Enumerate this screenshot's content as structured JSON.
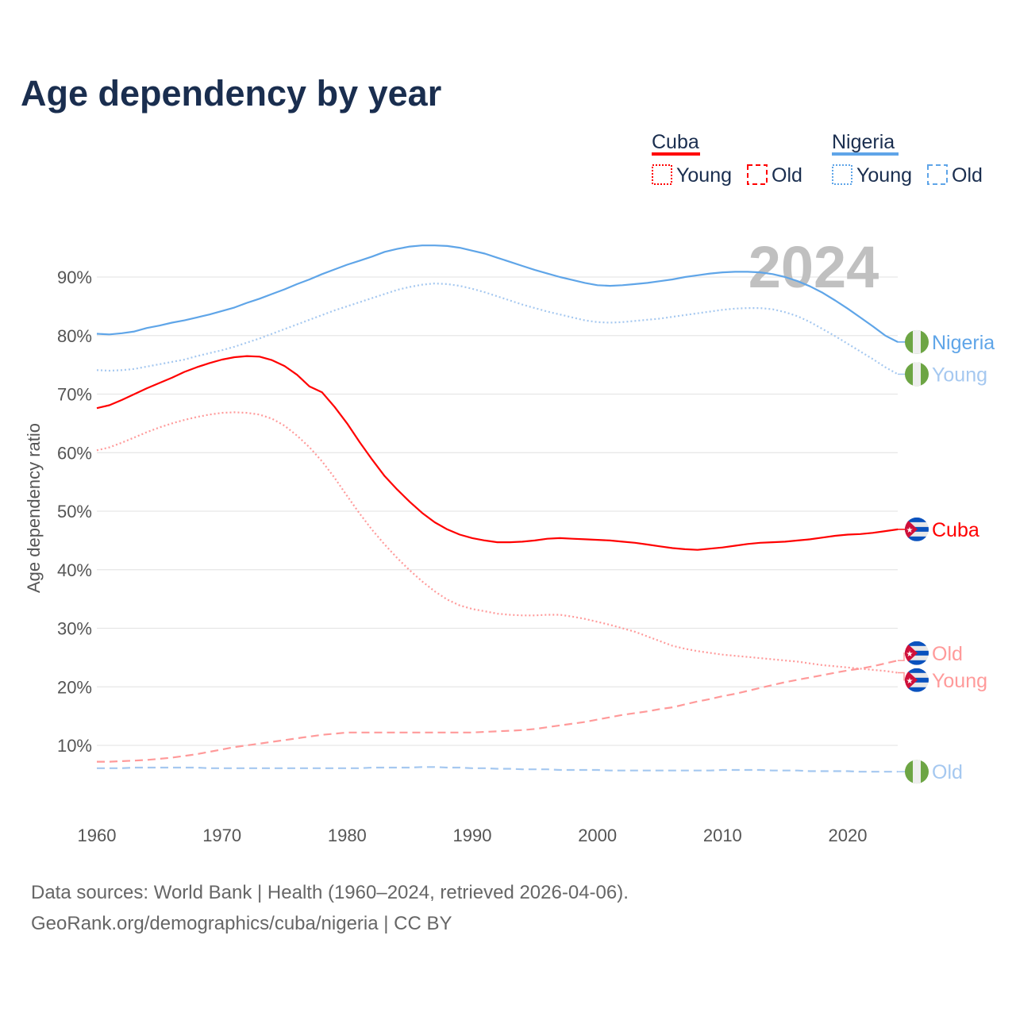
{
  "chart_data": {
    "type": "line",
    "title": "Age dependency by year",
    "ylabel": "Age dependency ratio",
    "xlabel": "",
    "ylim": [
      0,
      95
    ],
    "xlim": [
      1960,
      2024
    ],
    "grid": true,
    "yticks": [
      10,
      20,
      30,
      40,
      50,
      60,
      70,
      80,
      90
    ],
    "ytick_labels": [
      "10%",
      "20%",
      "30%",
      "40%",
      "50%",
      "60%",
      "70%",
      "80%",
      "90%"
    ],
    "xticks": [
      1960,
      1970,
      1980,
      1990,
      2000,
      2010,
      2020
    ],
    "xtick_labels": [
      "1960",
      "1970",
      "1980",
      "1990",
      "2000",
      "2010",
      "2020"
    ],
    "current_year_label": "2024",
    "x_start": 1960,
    "legend": {
      "placement": "top-right",
      "groups": [
        {
          "name": "Cuba",
          "color": "#ff0000",
          "items": [
            "Young",
            "Old"
          ]
        },
        {
          "name": "Nigeria",
          "color": "#5fa5e8",
          "items": [
            "Young",
            "Old"
          ]
        }
      ]
    },
    "series": [
      {
        "name": "Nigeria",
        "label": "Nigeria",
        "country": "Nigeria",
        "style": "solid",
        "color": "#5fa5e8",
        "values": [
          80.3,
          80.2,
          80.4,
          80.7,
          81.3,
          81.7,
          82.2,
          82.6,
          83.1,
          83.6,
          84.2,
          84.8,
          85.6,
          86.3,
          87.1,
          87.9,
          88.8,
          89.6,
          90.5,
          91.3,
          92.1,
          92.8,
          93.5,
          94.3,
          94.8,
          95.2,
          95.4,
          95.4,
          95.3,
          95.0,
          94.5,
          94.0,
          93.3,
          92.6,
          91.9,
          91.2,
          90.6,
          90.0,
          89.5,
          89.0,
          88.6,
          88.5,
          88.6,
          88.8,
          89.0,
          89.3,
          89.6,
          90.0,
          90.3,
          90.6,
          90.8,
          90.9,
          90.9,
          90.8,
          90.5,
          90.0,
          89.3,
          88.4,
          87.3,
          86.0,
          84.6,
          83.1,
          81.6,
          80.0,
          78.9
        ]
      },
      {
        "name": "Nigeria Young",
        "label": "Young",
        "country": "Nigeria",
        "style": "dotted",
        "color": "#a5c8f0",
        "values": [
          74.1,
          74.0,
          74.1,
          74.3,
          74.7,
          75.1,
          75.5,
          75.9,
          76.5,
          77.0,
          77.5,
          78.1,
          78.8,
          79.5,
          80.3,
          81.1,
          81.9,
          82.7,
          83.5,
          84.3,
          85.0,
          85.7,
          86.4,
          87.1,
          87.8,
          88.3,
          88.7,
          88.9,
          88.8,
          88.5,
          88.0,
          87.4,
          86.7,
          86.0,
          85.3,
          84.7,
          84.1,
          83.6,
          83.1,
          82.6,
          82.3,
          82.2,
          82.3,
          82.5,
          82.7,
          82.9,
          83.2,
          83.5,
          83.8,
          84.1,
          84.4,
          84.6,
          84.7,
          84.7,
          84.5,
          84.0,
          83.3,
          82.3,
          81.1,
          79.9,
          78.6,
          77.3,
          76.0,
          74.6,
          73.4
        ]
      },
      {
        "name": "Cuba",
        "label": "Cuba",
        "country": "Cuba",
        "style": "solid",
        "color": "#ff0000",
        "values": [
          67.6,
          68.1,
          69.0,
          70.0,
          71.0,
          71.9,
          72.8,
          73.8,
          74.6,
          75.3,
          75.9,
          76.3,
          76.5,
          76.4,
          75.8,
          74.8,
          73.3,
          71.3,
          70.3,
          67.8,
          65.0,
          61.8,
          58.8,
          56.0,
          53.7,
          51.6,
          49.7,
          48.1,
          46.9,
          46.0,
          45.4,
          45.0,
          44.7,
          44.7,
          44.8,
          45.0,
          45.3,
          45.4,
          45.3,
          45.2,
          45.1,
          45.0,
          44.8,
          44.6,
          44.3,
          44.0,
          43.7,
          43.5,
          43.4,
          43.6,
          43.8,
          44.1,
          44.4,
          44.6,
          44.7,
          44.8,
          45.0,
          45.2,
          45.5,
          45.8,
          46.0,
          46.1,
          46.3,
          46.6,
          46.9
        ]
      },
      {
        "name": "Cuba Old",
        "label": "Old",
        "country": "Cuba",
        "style": "dashed",
        "color": "#ff9a9a",
        "values": [
          7.2,
          7.2,
          7.3,
          7.4,
          7.5,
          7.7,
          7.9,
          8.2,
          8.5,
          8.9,
          9.3,
          9.7,
          10.0,
          10.3,
          10.6,
          10.9,
          11.2,
          11.5,
          11.8,
          12.0,
          12.2,
          12.2,
          12.2,
          12.2,
          12.2,
          12.2,
          12.2,
          12.2,
          12.2,
          12.2,
          12.2,
          12.3,
          12.4,
          12.5,
          12.6,
          12.8,
          13.1,
          13.4,
          13.7,
          14.0,
          14.4,
          14.8,
          15.2,
          15.5,
          15.8,
          16.2,
          16.5,
          17.0,
          17.5,
          17.9,
          18.4,
          18.8,
          19.3,
          19.8,
          20.3,
          20.8,
          21.2,
          21.6,
          22.0,
          22.4,
          22.8,
          23.1,
          23.5,
          24.0,
          24.5
        ]
      },
      {
        "name": "Cuba Young",
        "label": "Young",
        "country": "Cuba",
        "style": "dotted",
        "color": "#ff9a9a",
        "values": [
          60.4,
          60.9,
          61.7,
          62.6,
          63.5,
          64.3,
          65.0,
          65.6,
          66.1,
          66.5,
          66.8,
          66.9,
          66.8,
          66.5,
          65.8,
          64.6,
          62.9,
          60.9,
          58.5,
          55.7,
          52.6,
          49.6,
          46.8,
          44.3,
          42.0,
          39.9,
          38.0,
          36.3,
          34.9,
          33.9,
          33.3,
          32.9,
          32.5,
          32.3,
          32.2,
          32.2,
          32.3,
          32.3,
          32.0,
          31.6,
          31.1,
          30.6,
          30.0,
          29.4,
          28.6,
          27.8,
          27.0,
          26.5,
          26.1,
          25.8,
          25.5,
          25.3,
          25.1,
          24.9,
          24.7,
          24.5,
          24.3,
          24.0,
          23.7,
          23.5,
          23.3,
          23.1,
          22.9,
          22.7,
          22.4
        ]
      },
      {
        "name": "Nigeria Old",
        "label": "Old",
        "country": "Nigeria",
        "style": "dashed",
        "color": "#a5c8f0",
        "values": [
          6.1,
          6.1,
          6.1,
          6.2,
          6.2,
          6.2,
          6.2,
          6.2,
          6.2,
          6.1,
          6.1,
          6.1,
          6.1,
          6.1,
          6.1,
          6.1,
          6.1,
          6.1,
          6.1,
          6.1,
          6.1,
          6.1,
          6.2,
          6.2,
          6.2,
          6.2,
          6.3,
          6.3,
          6.2,
          6.2,
          6.1,
          6.1,
          6.0,
          6.0,
          5.9,
          5.9,
          5.9,
          5.8,
          5.8,
          5.8,
          5.8,
          5.7,
          5.7,
          5.7,
          5.7,
          5.7,
          5.7,
          5.7,
          5.7,
          5.7,
          5.8,
          5.8,
          5.8,
          5.8,
          5.7,
          5.7,
          5.7,
          5.6,
          5.6,
          5.6,
          5.6,
          5.5,
          5.5,
          5.5,
          5.5
        ]
      }
    ]
  },
  "footer": {
    "source": "Data sources: World Bank | Health (1960–2024, retrieved 2026-04-06).",
    "credit": "GeoRank.org/demographics/cuba/nigeria | CC BY"
  }
}
